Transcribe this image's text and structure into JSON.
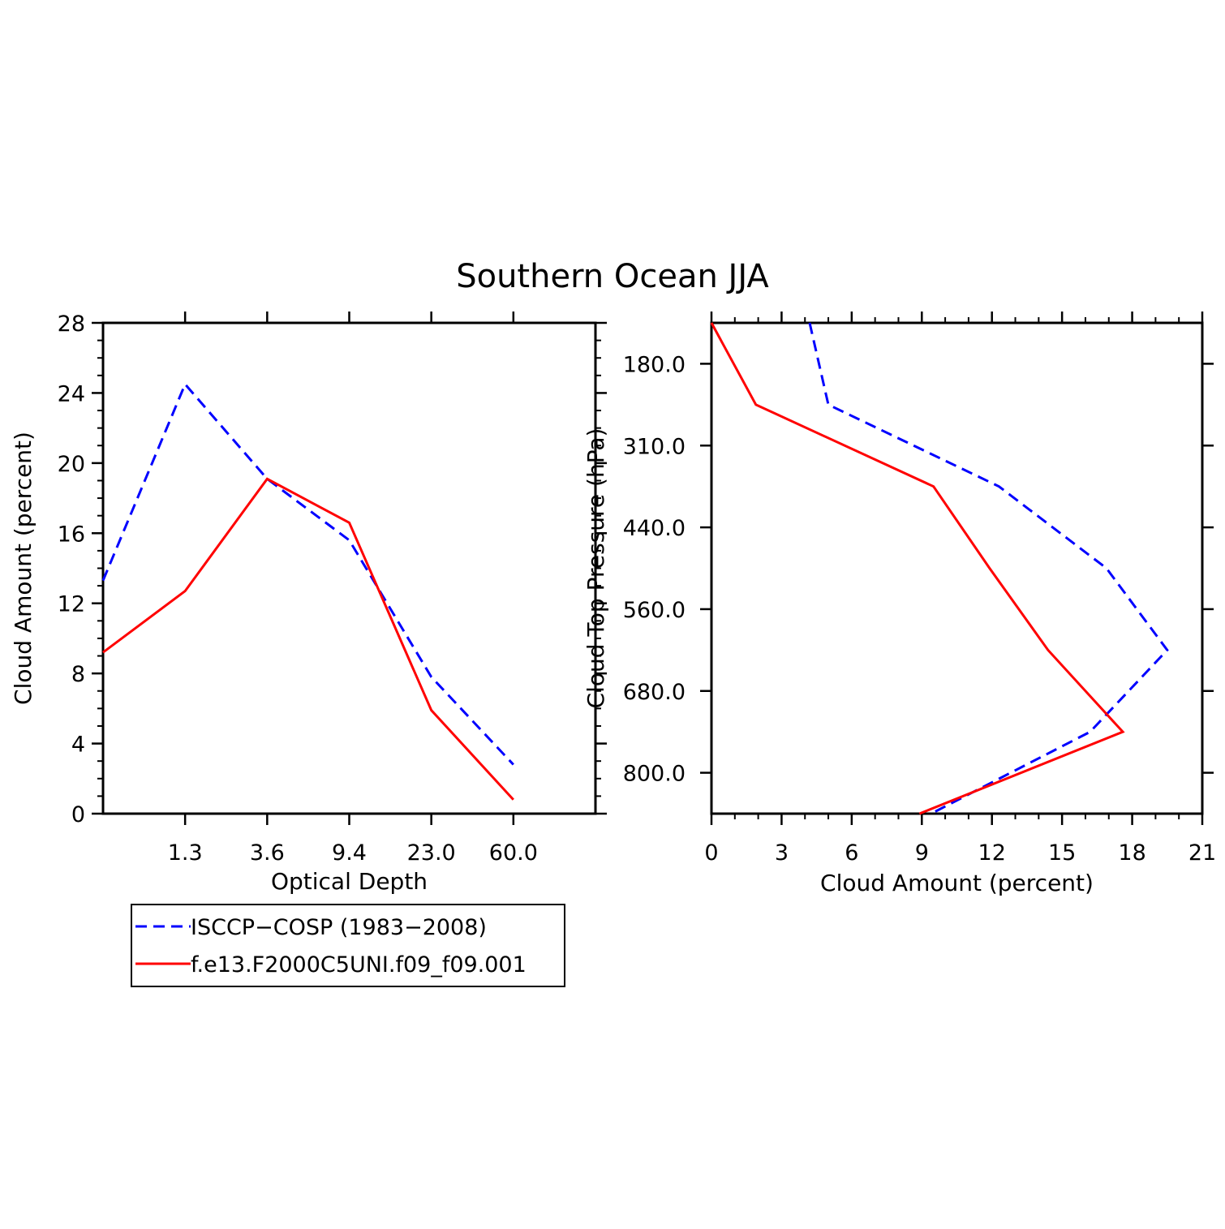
{
  "title": "Southern Ocean JJA",
  "colors": {
    "obs": "#0000ff",
    "model": "#ff0000",
    "axis": "#000000"
  },
  "legend": {
    "entries": [
      {
        "label": "ISCCP−COSP (1983−2008)",
        "color": "#0000ff",
        "style": "dashed"
      },
      {
        "label": "f.e13.F2000C5UNI.f09_f09.001",
        "color": "#ff0000",
        "style": "solid"
      }
    ]
  },
  "chart_data": [
    {
      "type": "line",
      "name": "optical-depth-panel",
      "xlabel": "Optical Depth",
      "ylabel": "Cloud Amount (percent)",
      "x_bins": [
        0,
        1,
        2,
        3,
        4,
        5
      ],
      "x_tick_labels": [
        "1.3",
        "3.6",
        "9.4",
        "23.0",
        "60.0"
      ],
      "xlim": [
        -0.5,
        5.5
      ],
      "ylim": [
        0,
        28
      ],
      "y_ticks": [
        0,
        4,
        8,
        12,
        16,
        20,
        24,
        28
      ],
      "series": [
        {
          "name": "ISCCP−COSP (1983−2008)",
          "color": "#0000ff",
          "style": "dashed",
          "x": [
            -0.5,
            0.5,
            1.5,
            2.5,
            3.5,
            4.5
          ],
          "values": [
            13.3,
            24.5,
            19.1,
            15.6,
            7.8,
            2.8
          ]
        },
        {
          "name": "f.e13.F2000C5UNI.f09_f09.001",
          "color": "#ff0000",
          "style": "solid",
          "x": [
            -0.5,
            0.5,
            1.5,
            2.5,
            3.5,
            4.5
          ],
          "values": [
            9.2,
            12.7,
            19.1,
            16.6,
            5.9,
            0.8
          ]
        }
      ]
    },
    {
      "type": "line",
      "name": "cloud-top-pressure-panel",
      "xlabel": "Cloud Amount (percent)",
      "ylabel": "Cloud Top Pressure (hPa)",
      "xlim": [
        0,
        21
      ],
      "x_ticks": [
        0,
        3,
        6,
        9,
        12,
        15,
        18,
        21
      ],
      "y_tick_labels": [
        "180.0",
        "310.0",
        "440.0",
        "560.0",
        "680.0",
        "800.0"
      ],
      "ylim_levels": [
        -0.5,
        5.5
      ],
      "series": [
        {
          "name": "ISCCP−COSP (1983−2008)",
          "color": "#0000ff",
          "style": "dashed",
          "x": [
            4.2,
            5.0,
            12.3,
            16.9,
            19.5,
            16.2,
            9.4
          ],
          "levels": [
            -0.5,
            0.5,
            1.5,
            2.5,
            3.5,
            4.5,
            5.5
          ]
        },
        {
          "name": "f.e13.F2000C5UNI.f09_f09.001",
          "color": "#ff0000",
          "style": "solid",
          "x": [
            0.0,
            1.9,
            9.5,
            11.9,
            14.4,
            17.6,
            8.9
          ],
          "levels": [
            -0.5,
            0.5,
            1.5,
            2.5,
            3.5,
            4.5,
            5.5
          ]
        }
      ]
    }
  ]
}
